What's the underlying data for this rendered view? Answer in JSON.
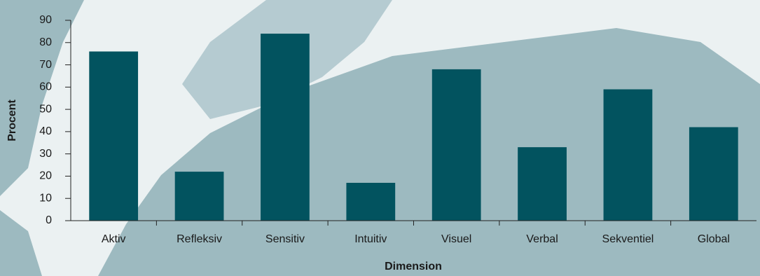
{
  "chart_data": {
    "type": "bar",
    "x_label": "Dimension",
    "y_label": "Procent",
    "categories": [
      "Aktiv",
      "Refleksiv",
      "Sensitiv",
      "Intuitiv",
      "Visuel",
      "Verbal",
      "Sekventiel",
      "Global"
    ],
    "values": [
      76,
      22,
      84,
      17,
      68,
      33,
      59,
      42
    ],
    "color": "#02535f",
    "ylim": [
      0,
      90
    ],
    "yticks": [
      0,
      10,
      20,
      30,
      40,
      50,
      60,
      70,
      80,
      90
    ]
  }
}
